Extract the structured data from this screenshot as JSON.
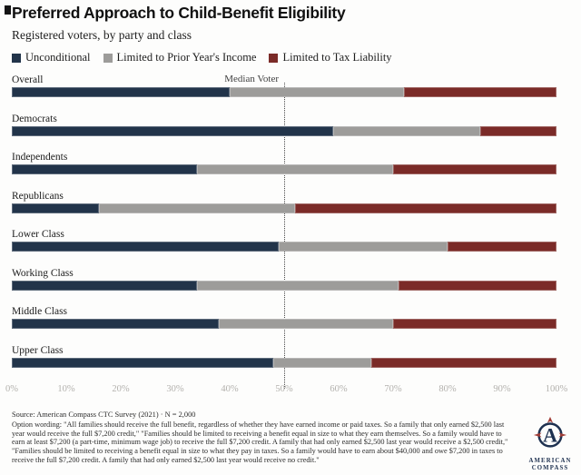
{
  "page": {
    "title": "Preferred Approach to Child-Benefit Eligibility",
    "subtitle": "Registered voters, by party and class"
  },
  "chart_data": {
    "type": "bar",
    "orientation": "horizontal",
    "stacked": true,
    "title": "Preferred Approach to Child-Benefit Eligibility",
    "subtitle": "Registered voters, by party and class",
    "categories": [
      "Overall",
      "Democrats",
      "Independents",
      "Republicans",
      "Lower Class",
      "Working Class",
      "Middle Class",
      "Upper Class"
    ],
    "series": [
      {
        "name": "Unconditional",
        "color": "#22344a",
        "values": [
          40,
          59,
          34,
          16,
          49,
          34,
          38,
          48
        ]
      },
      {
        "name": "Limited to Prior Year's Income",
        "color": "#9d9c9a",
        "values": [
          32,
          27,
          36,
          36,
          31,
          37,
          32,
          18
        ]
      },
      {
        "name": "Limited to Tax Liability",
        "color": "#7b2b28",
        "values": [
          28,
          14,
          30,
          48,
          20,
          29,
          30,
          34
        ]
      }
    ],
    "xlim": [
      0,
      100
    ],
    "x_ticks": [
      "0%",
      "10%",
      "20%",
      "30%",
      "40%",
      "50%",
      "60%",
      "70%",
      "80%",
      "90%",
      "100%"
    ],
    "grid": false,
    "legend_position": "top",
    "annotation": {
      "label": "Median Voter",
      "x": 50
    }
  },
  "footer": {
    "source": "Source: American Compass CTC Survey (2021) · N = 2,000",
    "option_wording": "Option wording: \"All families should receive the full benefit, regardless of whether they have earned income or paid taxes. So a family that only earned $2,500 last year would receive the full $7,200 credit,\" \"Families should be limited to receiving a benefit equal in size to what they earn themselves. So a family would have to earn at least $7,200 (a part-time, minimum wage job) to receive the full $7,200 credit. A family that had only earned $2,500 last year would receive a $2,500 credit,\" \"Families should be limited to receiving a benefit equal in size to what they pay in taxes. So a family would have to earn about $40,000 and owe $7,200 in taxes to receive the full $7,200 credit. A family that had only earned $2,500 last year would receive no credit.\""
  },
  "logo": {
    "name": "American Compass",
    "line1": "AMERICAN",
    "line2": "COMPASS"
  }
}
